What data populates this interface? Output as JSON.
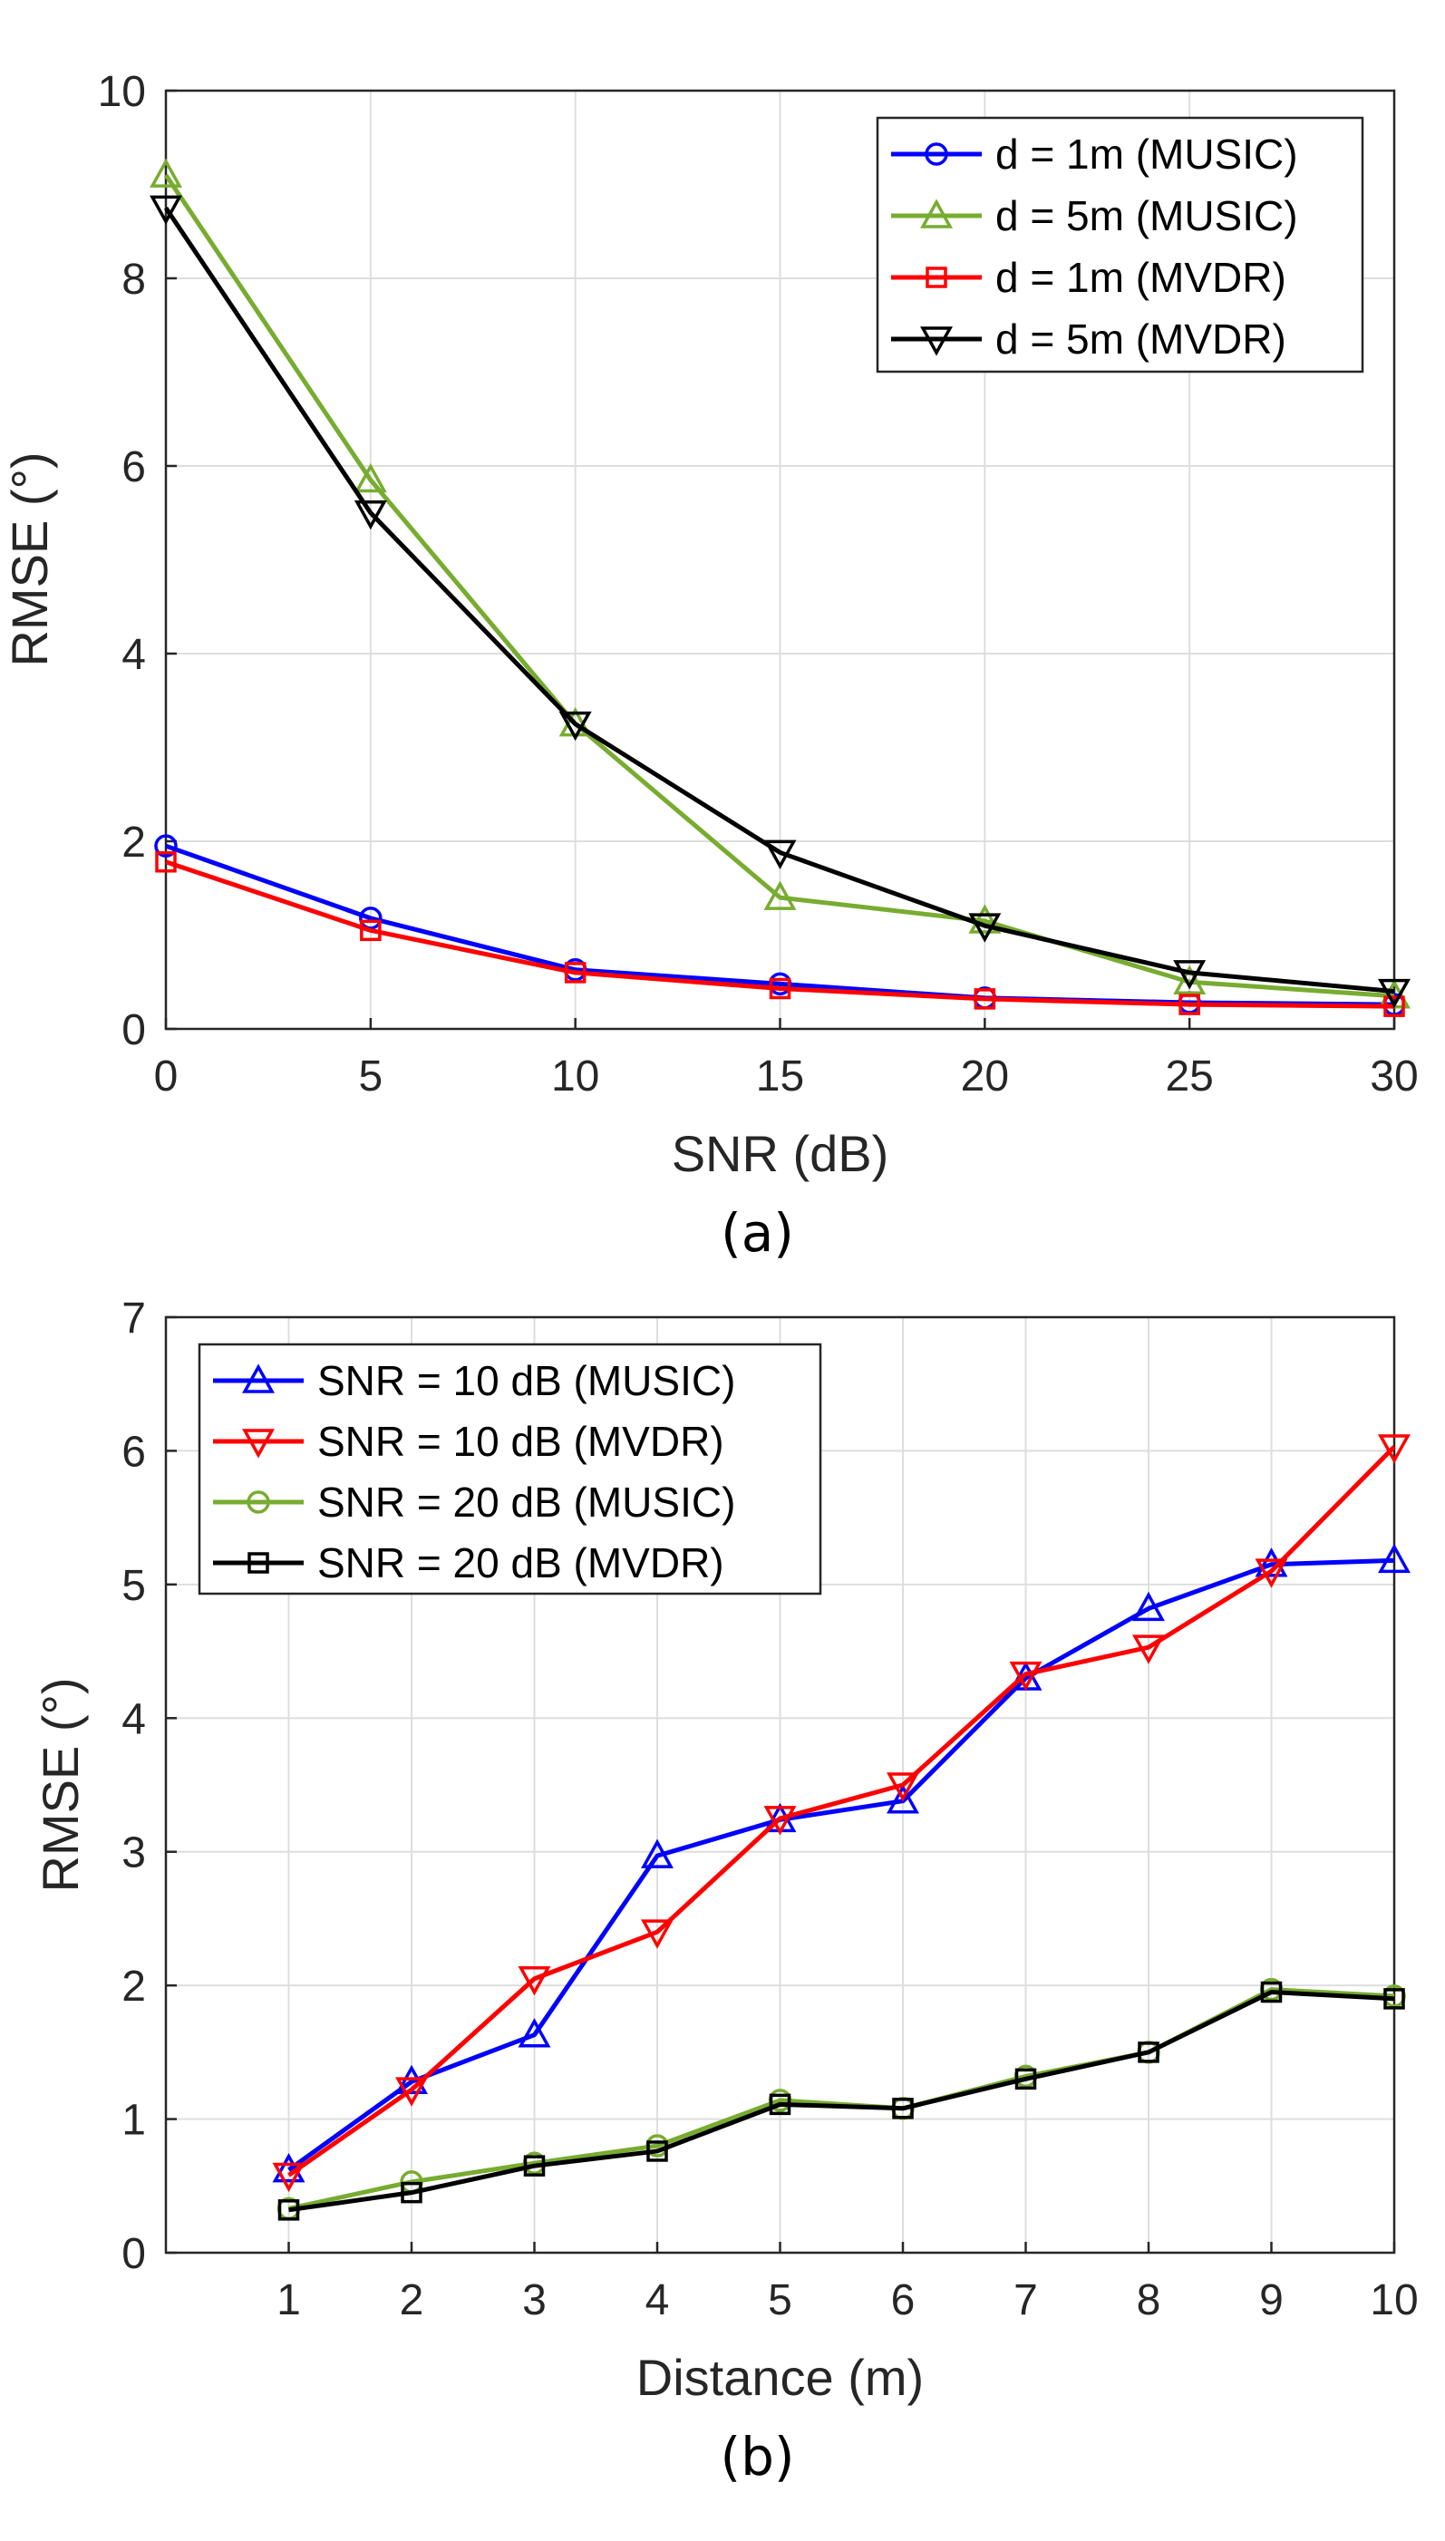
{
  "chart_data": [
    {
      "type": "line",
      "caption": "(a)",
      "xlabel": "SNR (dB)",
      "ylabel": "RMSE (°)",
      "xlim": [
        0,
        30
      ],
      "ylim": [
        0,
        10
      ],
      "xticks": [
        "0",
        "5",
        "10",
        "15",
        "20",
        "25",
        "30"
      ],
      "yticks": [
        "0",
        "2",
        "4",
        "6",
        "8",
        "10"
      ],
      "x": [
        0,
        5,
        10,
        15,
        20,
        25,
        30
      ],
      "grid": true,
      "legend_position": "top-right",
      "series": [
        {
          "name": "d = 1m (MUSIC)",
          "color": "#0000ff",
          "marker": "circle",
          "values": [
            1.95,
            1.18,
            0.63,
            0.48,
            0.33,
            0.28,
            0.26
          ]
        },
        {
          "name": "d = 5m (MUSIC)",
          "color": "#77ac30",
          "marker": "triangle-up",
          "values": [
            9.1,
            5.85,
            3.25,
            1.4,
            1.15,
            0.5,
            0.35
          ]
        },
        {
          "name": "d = 1m (MVDR)",
          "color": "#ff0000",
          "marker": "square",
          "values": [
            1.78,
            1.05,
            0.6,
            0.43,
            0.32,
            0.26,
            0.24
          ]
        },
        {
          "name": "d = 5m (MVDR)",
          "color": "#000000",
          "marker": "triangle-down",
          "values": [
            8.75,
            5.5,
            3.25,
            1.88,
            1.1,
            0.6,
            0.4
          ]
        }
      ]
    },
    {
      "type": "line",
      "caption": "(b)",
      "xlabel": "Distance (m)",
      "ylabel": "RMSE (°)",
      "xlim": [
        0,
        10
      ],
      "ylim": [
        0,
        7
      ],
      "xticks": [
        "1",
        "2",
        "3",
        "4",
        "5",
        "6",
        "7",
        "8",
        "9",
        "10"
      ],
      "yticks": [
        "0",
        "1",
        "2",
        "3",
        "4",
        "5",
        "6",
        "7"
      ],
      "x": [
        1,
        2,
        3,
        4,
        5,
        6,
        7,
        8,
        9,
        10
      ],
      "grid": true,
      "legend_position": "top-left",
      "series": [
        {
          "name": "SNR = 10 dB (MUSIC)",
          "color": "#0000ff",
          "marker": "triangle-up",
          "values": [
            0.62,
            1.28,
            1.63,
            2.97,
            3.24,
            3.38,
            4.3,
            4.82,
            5.15,
            5.18
          ]
        },
        {
          "name": "SNR = 10 dB (MVDR)",
          "color": "#ff0000",
          "marker": "triangle-down",
          "values": [
            0.58,
            1.22,
            2.05,
            2.4,
            3.25,
            3.5,
            4.33,
            4.53,
            5.1,
            6.03
          ]
        },
        {
          "name": "SNR = 20 dB (MUSIC)",
          "color": "#77ac30",
          "marker": "circle",
          "values": [
            0.33,
            0.53,
            0.67,
            0.8,
            1.14,
            1.08,
            1.32,
            1.5,
            1.97,
            1.92
          ]
        },
        {
          "name": "SNR = 20 dB (MVDR)",
          "color": "#000000",
          "marker": "square",
          "values": [
            0.32,
            0.45,
            0.65,
            0.76,
            1.11,
            1.08,
            1.3,
            1.5,
            1.95,
            1.9
          ]
        }
      ]
    }
  ]
}
